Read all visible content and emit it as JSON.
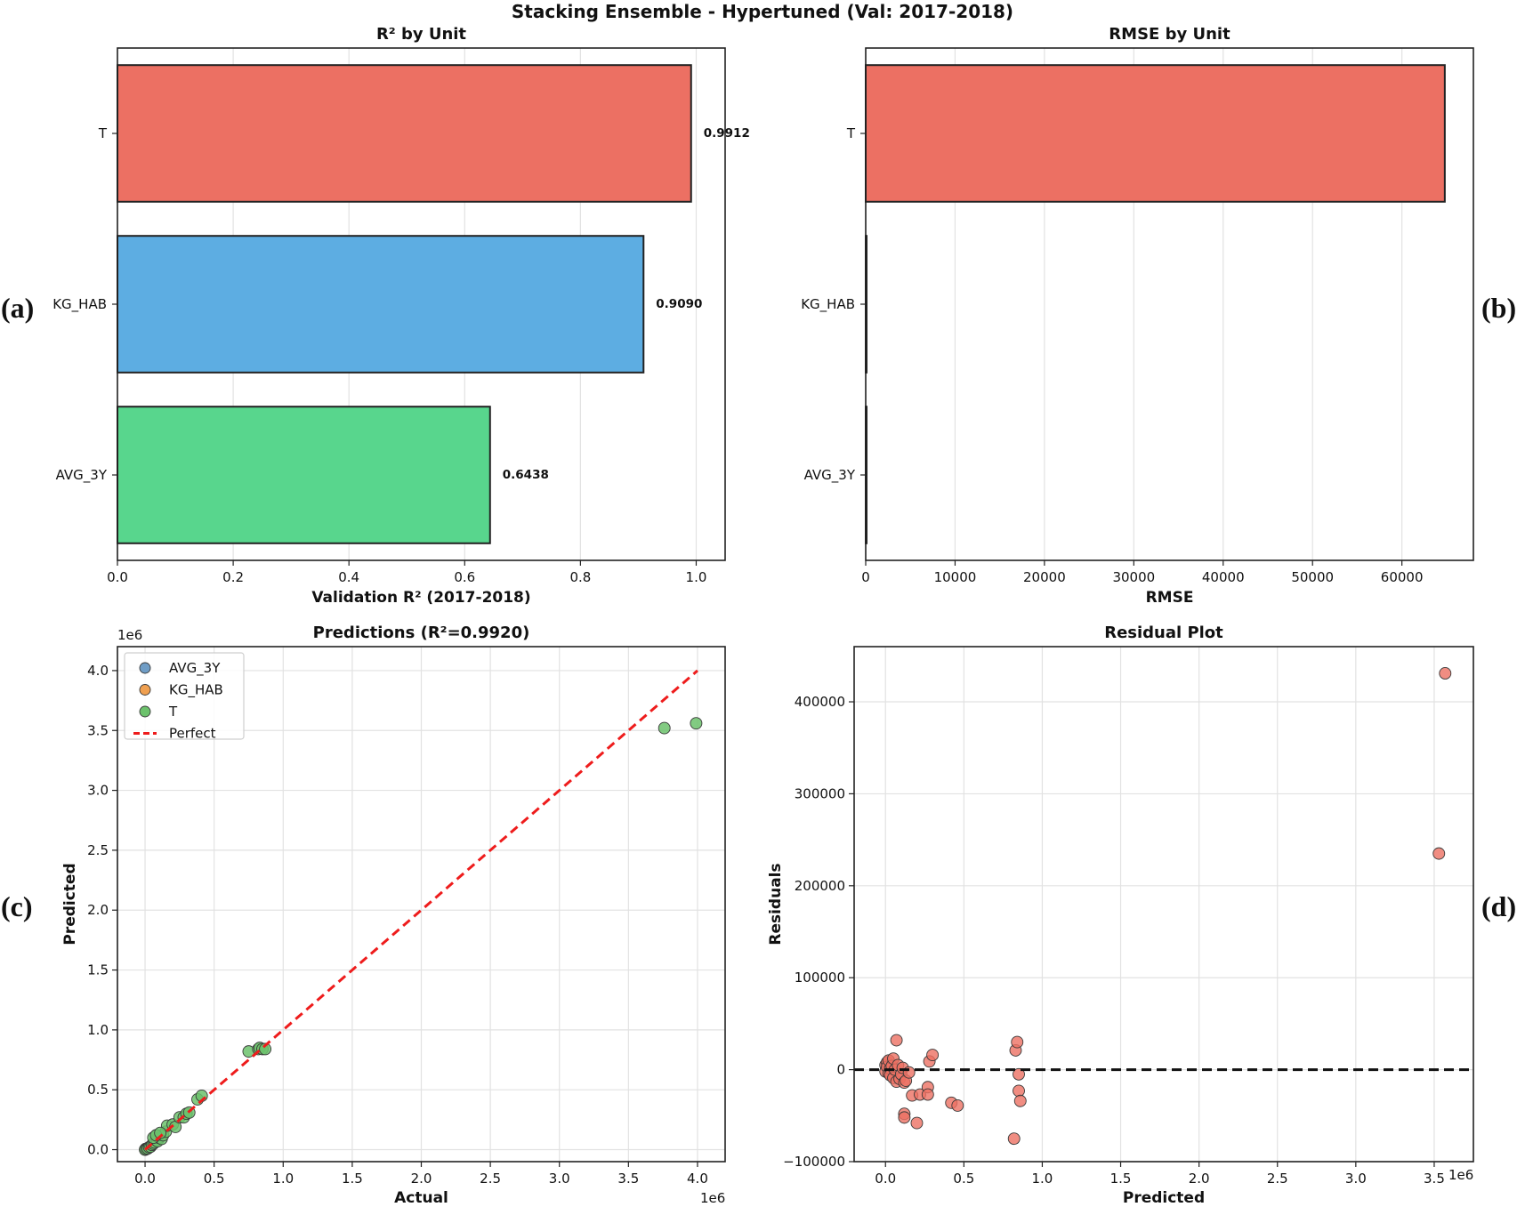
{
  "figure": {
    "title": "Stacking Ensemble - Hypertuned (Val: 2017-2018)",
    "panel_letters": [
      "(a)",
      "(b)",
      "(c)",
      "(d)"
    ]
  },
  "colors": {
    "T": "#ec7063",
    "KG_HAB": "#5dade2",
    "AVG_3Y": "#58d68d",
    "scatter_T": "#6cc26c",
    "scatter_AVG_3Y": "#6f9dc6",
    "scatter_KG_HAB": "#f0a050",
    "perfect_line": "#ee1c1c",
    "residual_points": "#ec7063"
  },
  "chart_data": [
    {
      "id": "a",
      "type": "bar",
      "orientation": "horizontal",
      "title": "R² by Unit",
      "xlabel": "Validation R² (2017-2018)",
      "ylabel": "",
      "categories": [
        "T",
        "KG_HAB",
        "AVG_3Y"
      ],
      "values": [
        0.9912,
        0.909,
        0.6438
      ],
      "value_labels": [
        "0.9912",
        "0.9090",
        "0.6438"
      ],
      "xlim": [
        0,
        1.05
      ],
      "xticks": [
        0,
        0.2,
        0.4,
        0.6,
        0.8,
        1.0
      ],
      "xtick_labels": [
        "0.0",
        "0.2",
        "0.4",
        "0.6",
        "0.8",
        "1.0"
      ],
      "grid": true
    },
    {
      "id": "b",
      "type": "bar",
      "orientation": "horizontal",
      "title": "RMSE by Unit",
      "xlabel": "RMSE",
      "ylabel": "",
      "categories": [
        "T",
        "KG_HAB",
        "AVG_3Y"
      ],
      "values": [
        64800,
        15,
        30
      ],
      "xlim": [
        0,
        68000
      ],
      "xticks": [
        0,
        10000,
        20000,
        30000,
        40000,
        50000,
        60000
      ],
      "xtick_labels": [
        "0",
        "10000",
        "20000",
        "30000",
        "40000",
        "50000",
        "60000"
      ],
      "grid": true
    },
    {
      "id": "c",
      "type": "scatter",
      "title": "Predictions (R²=0.9920)",
      "xlabel": "Actual",
      "ylabel": "Predicted",
      "x_offset_label": "1e6",
      "y_offset_label": "1e6",
      "xlim": [
        -0.2,
        4.2
      ],
      "ylim": [
        -0.1,
        4.2
      ],
      "xticks": [
        0,
        0.5,
        1.0,
        1.5,
        2.0,
        2.5,
        3.0,
        3.5,
        4.0
      ],
      "xtick_labels": [
        "0.0",
        "0.5",
        "1.0",
        "1.5",
        "2.0",
        "2.5",
        "3.0",
        "3.5",
        "4.0"
      ],
      "yticks": [
        0,
        0.5,
        1.0,
        1.5,
        2.0,
        2.5,
        3.0,
        3.5,
        4.0
      ],
      "ytick_labels": [
        "0.0",
        "0.5",
        "1.0",
        "1.5",
        "2.0",
        "2.5",
        "3.0",
        "3.5",
        "4.0"
      ],
      "legend": [
        "AVG_3Y",
        "KG_HAB",
        "T",
        "Perfect"
      ],
      "series": [
        {
          "name": "AVG_3Y",
          "points": [
            [
              0.002,
              0.002
            ],
            [
              0.003,
              0.004
            ]
          ]
        },
        {
          "name": "KG_HAB",
          "points": [
            [
              0.005,
              0.006
            ],
            [
              0.004,
              0.003
            ]
          ]
        },
        {
          "name": "T",
          "points": [
            [
              0.0,
              0.0
            ],
            [
              0.01,
              0.005
            ],
            [
              0.02,
              0.01
            ],
            [
              0.03,
              0.02
            ],
            [
              0.04,
              0.025
            ],
            [
              0.05,
              0.04
            ],
            [
              0.06,
              0.05
            ],
            [
              0.07,
              0.06
            ],
            [
              0.08,
              0.08
            ],
            [
              0.09,
              0.07
            ],
            [
              0.1,
              0.1
            ],
            [
              0.12,
              0.09
            ],
            [
              0.13,
              0.12
            ],
            [
              0.15,
              0.15
            ],
            [
              0.16,
              0.2
            ],
            [
              0.2,
              0.21
            ],
            [
              0.22,
              0.19
            ],
            [
              0.25,
              0.27
            ],
            [
              0.28,
              0.27
            ],
            [
              0.3,
              0.3
            ],
            [
              0.32,
              0.31
            ],
            [
              0.38,
              0.42
            ],
            [
              0.41,
              0.45
            ],
            [
              0.06,
              0.1
            ],
            [
              0.08,
              0.12
            ],
            [
              0.11,
              0.14
            ],
            [
              0.75,
              0.82
            ],
            [
              0.82,
              0.84
            ],
            [
              0.83,
              0.85
            ],
            [
              0.85,
              0.84
            ],
            [
              0.87,
              0.84
            ],
            [
              3.76,
              3.52
            ],
            [
              3.99,
              3.56
            ]
          ]
        }
      ],
      "perfect_line": [
        [
          0,
          0
        ],
        [
          4.0,
          4.0
        ]
      ],
      "grid": true
    },
    {
      "id": "d",
      "type": "scatter",
      "title": "Residual Plot",
      "xlabel": "Predicted",
      "ylabel": "Residuals",
      "x_offset_label": "1e6",
      "xlim": [
        -0.2,
        3.75
      ],
      "ylim": [
        -100000,
        460000
      ],
      "xticks": [
        0,
        0.5,
        1.0,
        1.5,
        2.0,
        2.5,
        3.0,
        3.5
      ],
      "xtick_labels": [
        "0.0",
        "0.5",
        "1.0",
        "1.5",
        "2.0",
        "2.5",
        "3.0",
        "3.5"
      ],
      "yticks": [
        -100000,
        0,
        100000,
        200000,
        300000,
        400000
      ],
      "ytick_labels": [
        "−100000",
        "0",
        "100000",
        "200000",
        "300000",
        "400000"
      ],
      "zero_line": 0,
      "points": [
        [
          0.0,
          5000
        ],
        [
          0.0,
          -2000
        ],
        [
          0.01,
          8000
        ],
        [
          0.01,
          3000
        ],
        [
          0.02,
          -4000
        ],
        [
          0.02,
          10000
        ],
        [
          0.03,
          1000
        ],
        [
          0.03,
          -6000
        ],
        [
          0.04,
          4000
        ],
        [
          0.05,
          -9000
        ],
        [
          0.05,
          12000
        ],
        [
          0.06,
          0
        ],
        [
          0.07,
          -13000
        ],
        [
          0.07,
          32000
        ],
        [
          0.08,
          5000
        ],
        [
          0.09,
          -10000
        ],
        [
          0.1,
          -5000
        ],
        [
          0.11,
          2000
        ],
        [
          0.12,
          -14000
        ],
        [
          0.12,
          -48000
        ],
        [
          0.12,
          -52000
        ],
        [
          0.13,
          -12000
        ],
        [
          0.15,
          -3000
        ],
        [
          0.17,
          -28000
        ],
        [
          0.2,
          -58000
        ],
        [
          0.22,
          -27000
        ],
        [
          0.27,
          -19000
        ],
        [
          0.27,
          -27000
        ],
        [
          0.28,
          9000
        ],
        [
          0.3,
          16000
        ],
        [
          0.42,
          -36000
        ],
        [
          0.46,
          -39000
        ],
        [
          0.82,
          -75000
        ],
        [
          0.83,
          21000
        ],
        [
          0.84,
          30000
        ],
        [
          0.85,
          -5000
        ],
        [
          0.85,
          -23000
        ],
        [
          0.86,
          -34000
        ],
        [
          3.53,
          235000
        ],
        [
          3.57,
          431000
        ]
      ],
      "grid": true
    }
  ]
}
